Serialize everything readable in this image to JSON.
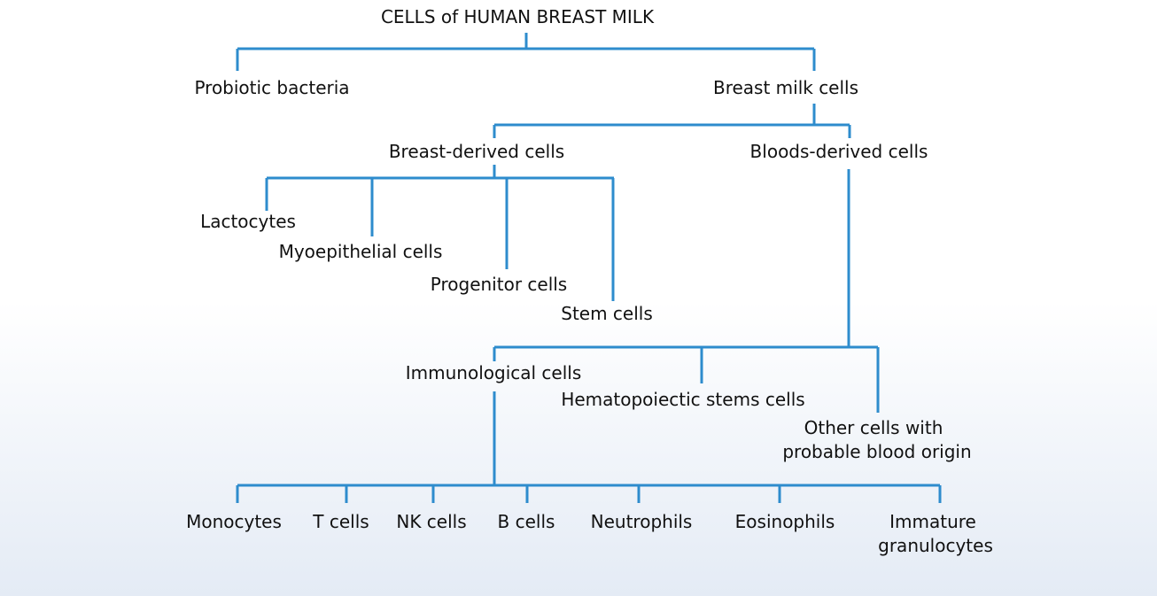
{
  "diagram": {
    "title": "CELLS of HUMAN BREAST MILK",
    "probiotic": "Probiotic bacteria",
    "milk_cells": "Breast milk cells",
    "breast_derived": "Breast-derived cells",
    "blood_derived": "Bloods-derived cells",
    "lactocytes": "Lactocytes",
    "myoepithelial": "Myoepithelial cells",
    "progenitor": "Progenitor cells",
    "stem": "Stem cells",
    "immunological": "Immunological cells",
    "hematopoietic": "Hematopoiectic stems cells",
    "other_line1": "Other cells with",
    "other_line2": "probable blood origin",
    "monocytes": "Monocytes",
    "t_cells": "T cells",
    "nk_cells": "NK cells",
    "b_cells": "B cells",
    "neutrophils": "Neutrophils",
    "eosinophils": "Eosinophils",
    "immature_line1": "Immature",
    "immature_line2": "granulocytes"
  },
  "colors": {
    "connector": "#2e8ccd",
    "text": "#111111"
  }
}
